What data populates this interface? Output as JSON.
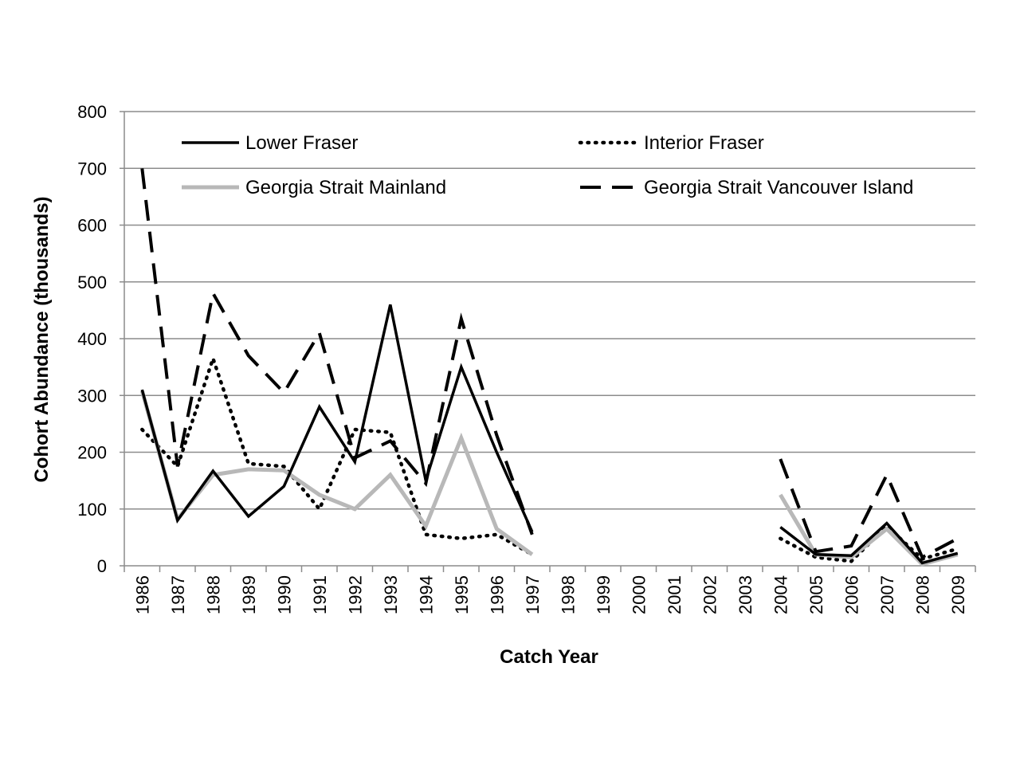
{
  "chart_data": {
    "type": "line",
    "title": "",
    "xlabel": "Catch Year",
    "ylabel": "Cohort Abundance (thousands)",
    "ylim": [
      0,
      800
    ],
    "yticks": [
      0,
      100,
      200,
      300,
      400,
      500,
      600,
      700,
      800
    ],
    "categories": [
      "1986",
      "1987",
      "1988",
      "1989",
      "1990",
      "1991",
      "1992",
      "1993",
      "1994",
      "1995",
      "1996",
      "1997",
      "1998",
      "1999",
      "2000",
      "2001",
      "2002",
      "2003",
      "2004",
      "2005",
      "2006",
      "2007",
      "2008",
      "2009"
    ],
    "grid": true,
    "legend_position": "top",
    "series": [
      {
        "name": "Lower Fraser",
        "color": "#000000",
        "style": "solid",
        "values": [
          310,
          80,
          167,
          87,
          140,
          280,
          183,
          460,
          150,
          350,
          200,
          60,
          null,
          null,
          null,
          null,
          null,
          null,
          68,
          20,
          18,
          75,
          5,
          22
        ]
      },
      {
        "name": "Interior Fraser",
        "color": "#000000",
        "style": "dotted",
        "values": [
          240,
          175,
          365,
          180,
          175,
          100,
          240,
          235,
          55,
          48,
          55,
          20,
          null,
          null,
          null,
          null,
          null,
          null,
          48,
          15,
          8,
          70,
          12,
          30
        ]
      },
      {
        "name": "Georgia Strait Mainland",
        "color": "#b8b8b8",
        "style": "solid",
        "values": [
          308,
          82,
          160,
          170,
          168,
          125,
          100,
          160,
          70,
          225,
          65,
          20,
          null,
          null,
          null,
          null,
          null,
          null,
          125,
          20,
          15,
          65,
          3,
          20
        ]
      },
      {
        "name": "Georgia Strait Vancouver Island",
        "color": "#000000",
        "style": "dashed",
        "values": [
          700,
          175,
          480,
          370,
          305,
          410,
          190,
          220,
          145,
          435,
          230,
          55,
          null,
          null,
          null,
          null,
          null,
          null,
          188,
          25,
          35,
          160,
          15,
          48
        ]
      }
    ]
  }
}
